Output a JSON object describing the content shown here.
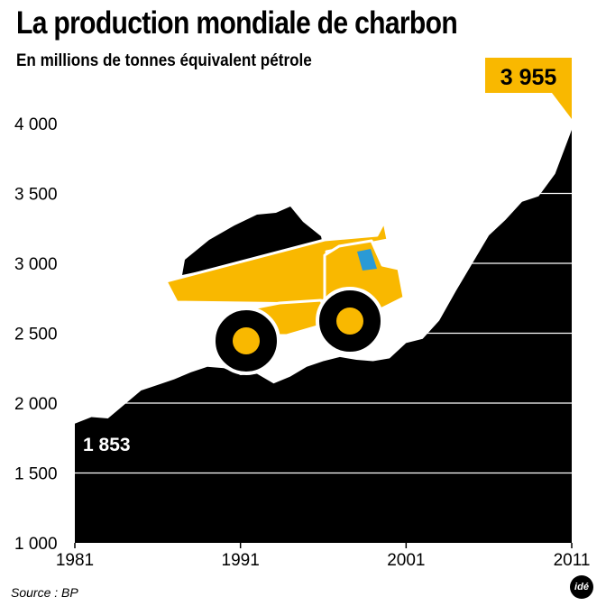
{
  "header": {
    "title": "La production mondiale de charbon",
    "subtitle": "En millions de tonnes équivalent pétrole"
  },
  "footer": {
    "source": "Source : BP",
    "logo": "idé"
  },
  "colors": {
    "area": "#000000",
    "accent": "#f9b800",
    "gridline": "#ffffff",
    "truck_window": "#2a9ad6"
  },
  "chart_data": {
    "type": "area",
    "title": "La production mondiale de charbon",
    "subtitle": "En millions de tonnes équivalent pétrole",
    "xlabel": "",
    "ylabel": "",
    "x": [
      1981,
      1982,
      1983,
      1984,
      1985,
      1986,
      1987,
      1988,
      1989,
      1990,
      1991,
      1992,
      1993,
      1994,
      1995,
      1996,
      1997,
      1998,
      1999,
      2000,
      2001,
      2002,
      2003,
      2004,
      2005,
      2006,
      2007,
      2008,
      2009,
      2010,
      2011
    ],
    "values": [
      1853,
      1900,
      1890,
      1990,
      2090,
      2130,
      2170,
      2220,
      2260,
      2250,
      2200,
      2210,
      2140,
      2190,
      2260,
      2300,
      2330,
      2310,
      2300,
      2320,
      2430,
      2460,
      2590,
      2800,
      3000,
      3200,
      3310,
      3440,
      3480,
      3640,
      3955
    ],
    "xlim": [
      1981,
      2011
    ],
    "ylim": [
      1000,
      4000
    ],
    "x_ticks": [
      "1981",
      "1991",
      "2001",
      "2011"
    ],
    "y_ticks": [
      "1 000",
      "1 500",
      "2 000",
      "2 500",
      "3 000",
      "3 500",
      "4 000"
    ],
    "grid": true,
    "annotations": [
      {
        "label": "1 853",
        "x": 1981,
        "y": 1853
      },
      {
        "label": "3 955",
        "x": 2011,
        "y": 3955
      }
    ]
  },
  "illustration": "dump-truck-icon"
}
